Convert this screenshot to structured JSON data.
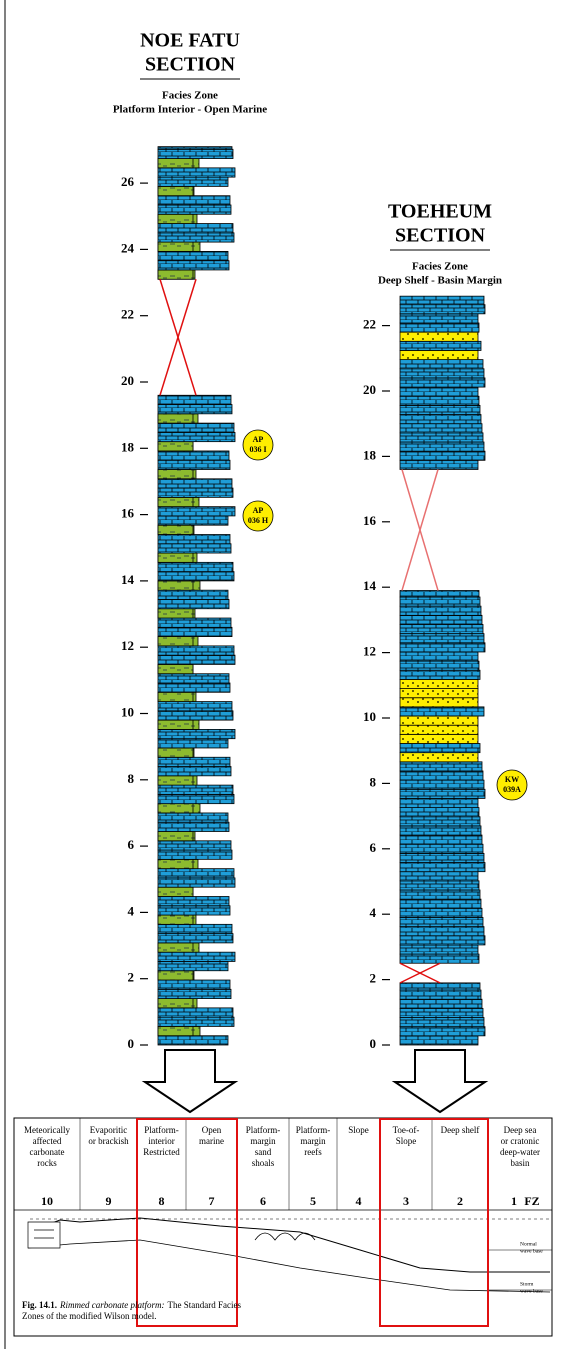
{
  "sections": [
    {
      "title_line1": "NOE FATU",
      "title_line2": "SECTION",
      "facies_label": "Facies Zone",
      "facies_zone": "Platform Interior -  Open Marine",
      "ticks": [
        0,
        2,
        4,
        6,
        8,
        10,
        12,
        14,
        16,
        18,
        20,
        22,
        24,
        26
      ],
      "samples": [
        {
          "line1": "AP",
          "line2": "036 I"
        },
        {
          "line1": "AP",
          "line2": "036 H"
        }
      ]
    },
    {
      "title_line1": "TOEHEUM",
      "title_line2": "SECTION",
      "facies_label": "Facies Zone",
      "facies_zone": "Deep Shelf - Basin Margin",
      "ticks": [
        0,
        2,
        4,
        6,
        8,
        10,
        12,
        14,
        16,
        18,
        20,
        22
      ],
      "samples": [
        {
          "line1": "KW",
          "line2": "039A"
        }
      ]
    }
  ],
  "wilson_model": {
    "zones": [
      {
        "name": [
          "Meteorically",
          "affected",
          "carbonate",
          "rocks"
        ],
        "number": 10
      },
      {
        "name": [
          "Evaporitic",
          "or brackish"
        ],
        "number": 9
      },
      {
        "name": [
          "Platform-",
          "interior",
          "Restricted"
        ],
        "number": 8
      },
      {
        "name": [
          "Open",
          "marine"
        ],
        "number": 7
      },
      {
        "name": [
          "Platform-",
          "margin",
          "sand",
          "shoals"
        ],
        "number": 6
      },
      {
        "name": [
          "Platform-",
          "margin",
          "reefs"
        ],
        "number": 5
      },
      {
        "name": [
          "Slope"
        ],
        "number": 4
      },
      {
        "name": [
          "Toe-of-",
          "Slope"
        ],
        "number": 3
      },
      {
        "name": [
          "Deep shelf"
        ],
        "number": 2
      },
      {
        "name": [
          "Deep sea",
          "or cratonic",
          "deep-water",
          "basin"
        ],
        "number": 1
      }
    ],
    "fz_label": "FZ",
    "normal_wave_base": [
      "Normal",
      "wave base"
    ],
    "storm_wave_base": [
      "Storm",
      "wave base"
    ],
    "caption_label": "Fig. 14.1.",
    "caption_title": "Rimmed carbonate platform:",
    "caption_line1": "The Standard Facies",
    "caption_line2": "Zones of the modified Wilson model."
  }
}
